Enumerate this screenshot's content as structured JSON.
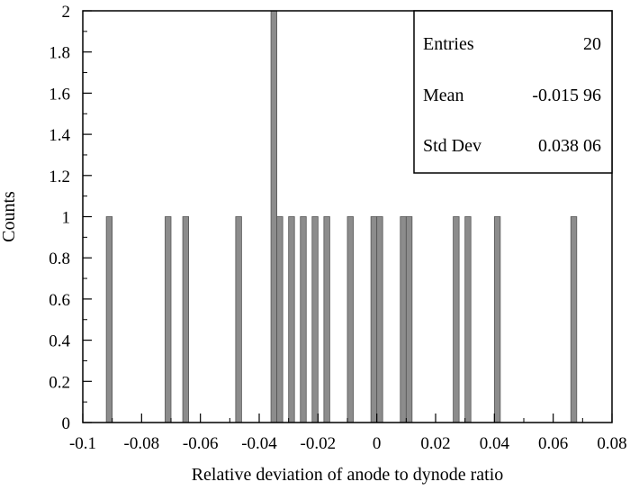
{
  "chart_data": {
    "type": "bar",
    "title": "",
    "xlabel": "Relative deviation of anode to dynode ratio",
    "ylabel": "Counts",
    "xlim": [
      -0.1,
      0.08
    ],
    "ylim": [
      0,
      2
    ],
    "bin_width": 0.002,
    "xticks": [
      -0.1,
      -0.08,
      -0.06,
      -0.04,
      -0.02,
      0,
      0.02,
      0.04,
      0.06,
      0.08
    ],
    "xtick_labels": [
      "-0.1",
      "-0.08",
      "-0.06",
      "-0.04",
      "-0.02",
      "0",
      "0.02",
      "0.04",
      "0.06",
      "0.08"
    ],
    "yticks": [
      0,
      0.2,
      0.4,
      0.6,
      0.8,
      1,
      1.2,
      1.4,
      1.6,
      1.8,
      2
    ],
    "ytick_labels": [
      "0",
      "0.2",
      "0.4",
      "0.6",
      "0.8",
      "1",
      "1.2",
      "1.4",
      "1.6",
      "1.8",
      "2"
    ],
    "bins": [
      {
        "x": -0.092,
        "count": 1
      },
      {
        "x": -0.072,
        "count": 1
      },
      {
        "x": -0.066,
        "count": 1
      },
      {
        "x": -0.048,
        "count": 1
      },
      {
        "x": -0.036,
        "count": 2
      },
      {
        "x": -0.034,
        "count": 1
      },
      {
        "x": -0.03,
        "count": 1
      },
      {
        "x": -0.026,
        "count": 1
      },
      {
        "x": -0.022,
        "count": 1
      },
      {
        "x": -0.018,
        "count": 1
      },
      {
        "x": -0.01,
        "count": 1
      },
      {
        "x": -0.002,
        "count": 1
      },
      {
        "x": 0.0,
        "count": 1
      },
      {
        "x": 0.008,
        "count": 1
      },
      {
        "x": 0.01,
        "count": 1
      },
      {
        "x": 0.026,
        "count": 1
      },
      {
        "x": 0.03,
        "count": 1
      },
      {
        "x": 0.04,
        "count": 1
      },
      {
        "x": 0.066,
        "count": 1
      }
    ],
    "grid": false,
    "bar_fill": "#8c8c8c",
    "bar_stroke": "#555555",
    "stats_box": {
      "placement": "top-right",
      "rows": [
        {
          "label": "Entries",
          "value": "20"
        },
        {
          "label": "Mean",
          "value": "-0.015 96"
        },
        {
          "label": "Std Dev",
          "value": "0.038 06"
        }
      ]
    }
  }
}
